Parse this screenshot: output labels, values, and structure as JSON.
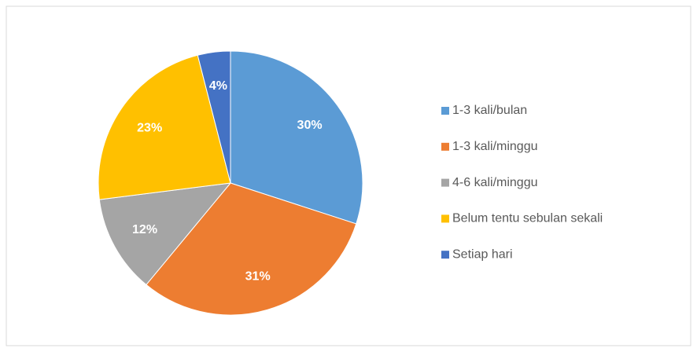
{
  "chart_data": {
    "type": "pie",
    "categories": [
      "1-3 kali/bulan",
      "1-3 kali/minggu",
      "4-6 kali/minggu",
      "Belum tentu sebulan sekali",
      "Setiap hari"
    ],
    "values": [
      30,
      31,
      12,
      23,
      4
    ],
    "value_labels": [
      "30%",
      "31%",
      "12%",
      "23%",
      "4%"
    ],
    "colors": [
      "#5b9bd5",
      "#ed7d31",
      "#a5a5a5",
      "#ffc000",
      "#4472c4"
    ],
    "legend": "right"
  }
}
